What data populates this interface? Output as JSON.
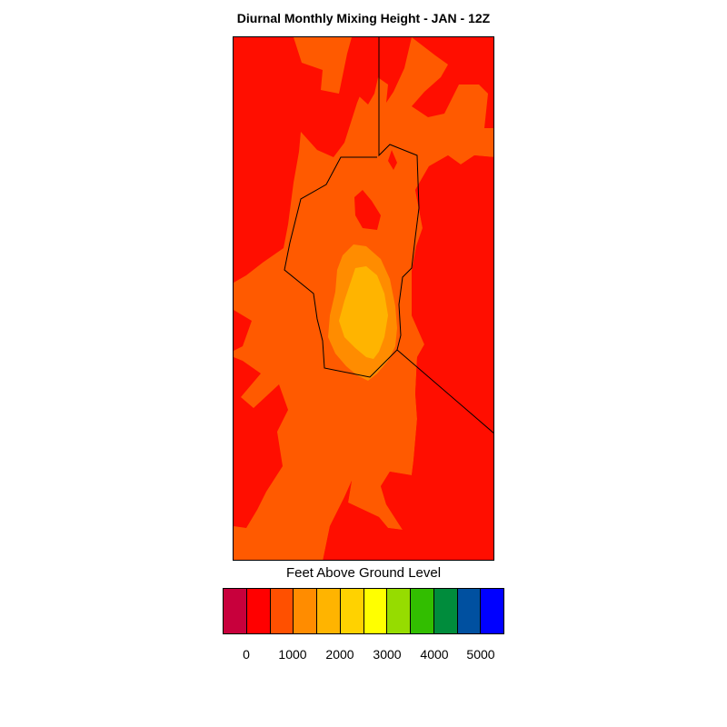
{
  "title": "Diurnal Monthly Mixing Height - JAN - 12Z",
  "colorbar": {
    "title": "Feet Above Ground Level",
    "colors": [
      "#c8003c",
      "#ff0000",
      "#ff5000",
      "#ff8c00",
      "#ffb400",
      "#ffd200",
      "#ffff00",
      "#96dc00",
      "#32be00",
      "#008c3c",
      "#0050a0",
      "#0000ff"
    ],
    "labels": [
      "0",
      "1000",
      "2000",
      "3000",
      "4000",
      "5000"
    ]
  },
  "map": {
    "palette": {
      "red": "#ff0e00",
      "orange_red": "#ff5a00",
      "orange": "#ff8c00",
      "amber": "#ffb400"
    },
    "boundary_color": "#000000"
  }
}
